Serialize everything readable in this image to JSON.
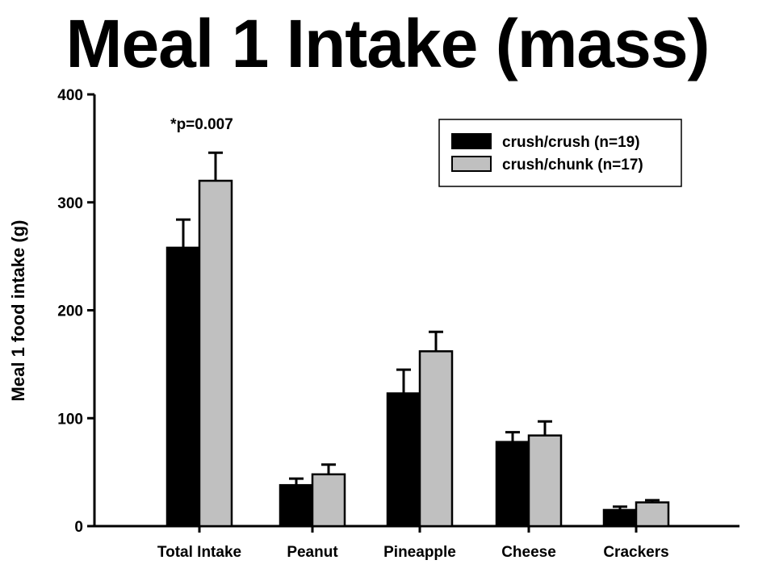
{
  "chart_data": {
    "type": "bar",
    "title": "Meal 1 Intake (mass)",
    "ylabel": "Meal 1 food intake (g)",
    "xlabel": "",
    "ylim": [
      0,
      400
    ],
    "yticks": [
      0,
      100,
      200,
      300,
      400
    ],
    "categories": [
      "Total Intake",
      "Peanut",
      "Pineapple",
      "Cheese",
      "Crackers"
    ],
    "series": [
      {
        "name": "crush/crush (n=19)",
        "color": "#000000",
        "values": [
          258,
          38,
          123,
          78,
          15
        ],
        "errors": [
          26,
          6,
          22,
          9,
          3
        ]
      },
      {
        "name": "crush/chunk (n=17)",
        "color": "#c0c0c0",
        "values": [
          320,
          48,
          162,
          84,
          22
        ],
        "errors": [
          26,
          9,
          18,
          13,
          2
        ]
      }
    ],
    "annotations": [
      {
        "text": "*p=0.007",
        "category": "Total Intake"
      }
    ],
    "legend_position": "top-right",
    "grid": false
  }
}
